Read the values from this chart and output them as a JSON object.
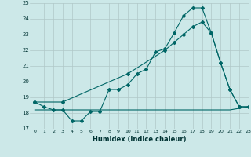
{
  "title": "",
  "xlabel": "Humidex (Indice chaleur)",
  "background_color": "#cce8e8",
  "grid_color": "#b0c8c8",
  "line_color": "#006666",
  "ylim": [
    17,
    25
  ],
  "xlim": [
    -0.5,
    23
  ],
  "yticks": [
    17,
    18,
    19,
    20,
    21,
    22,
    23,
    24,
    25
  ],
  "xticks": [
    0,
    1,
    2,
    3,
    4,
    5,
    6,
    7,
    8,
    9,
    10,
    11,
    12,
    13,
    14,
    15,
    16,
    17,
    18,
    19,
    20,
    21,
    22,
    23
  ],
  "line1_x": [
    0,
    1,
    2,
    3,
    4,
    5,
    6,
    7,
    8,
    9,
    10,
    11,
    12,
    13,
    14,
    15,
    16,
    17,
    18,
    19,
    20,
    21,
    22,
    23
  ],
  "line1_y": [
    18.7,
    18.4,
    18.2,
    18.2,
    17.5,
    17.5,
    18.1,
    18.1,
    19.5,
    19.5,
    19.8,
    20.5,
    20.8,
    21.9,
    22.1,
    23.1,
    24.2,
    24.7,
    24.7,
    23.1,
    21.2,
    19.5,
    18.4,
    18.4
  ],
  "line2_x": [
    0,
    3,
    10,
    14,
    15,
    16,
    17,
    18,
    19,
    20,
    21,
    22,
    23
  ],
  "line2_y": [
    18.7,
    18.7,
    20.5,
    22.0,
    22.5,
    23.0,
    23.5,
    23.8,
    23.1,
    21.2,
    19.5,
    18.4,
    18.4
  ],
  "line3_x": [
    0,
    21,
    23
  ],
  "line3_y": [
    18.2,
    18.2,
    18.4
  ]
}
